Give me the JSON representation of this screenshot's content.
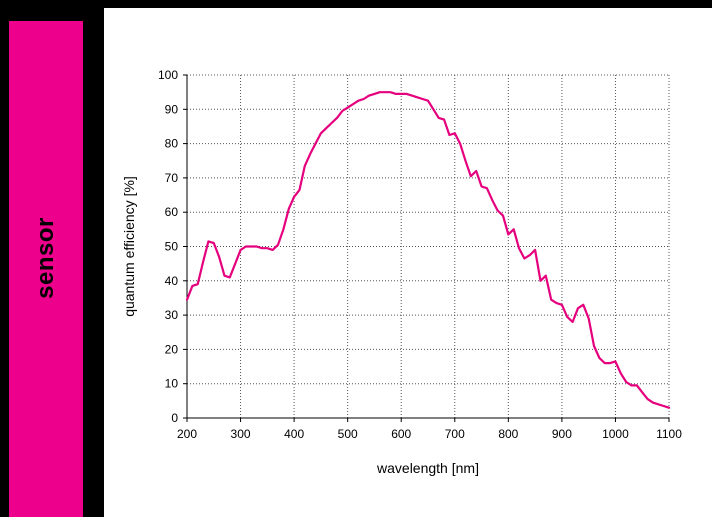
{
  "sidebar": {
    "label": "sensor",
    "accent_color": "#ec008c"
  },
  "chart_data": {
    "type": "line",
    "xlabel": "wavelength [nm]",
    "ylabel": "quantum efficiency [%]",
    "xlim": [
      200,
      1100
    ],
    "ylim": [
      0,
      100
    ],
    "x_ticks": [
      200,
      300,
      400,
      500,
      600,
      700,
      800,
      900,
      1000,
      1100
    ],
    "y_ticks": [
      0,
      10,
      20,
      30,
      40,
      50,
      60,
      70,
      80,
      90,
      100
    ],
    "grid": true,
    "grid_style": "dotted",
    "series": [
      {
        "color": "#e5007e",
        "x": [
          200,
          210,
          220,
          230,
          240,
          250,
          260,
          270,
          280,
          290,
          300,
          310,
          320,
          330,
          340,
          350,
          360,
          370,
          380,
          390,
          400,
          410,
          420,
          430,
          440,
          450,
          460,
          470,
          480,
          490,
          500,
          510,
          520,
          530,
          540,
          550,
          560,
          570,
          580,
          590,
          600,
          610,
          620,
          630,
          640,
          650,
          660,
          670,
          680,
          690,
          700,
          710,
          720,
          730,
          740,
          750,
          760,
          770,
          780,
          790,
          800,
          810,
          820,
          830,
          840,
          850,
          860,
          870,
          880,
          890,
          900,
          910,
          920,
          930,
          940,
          950,
          960,
          970,
          980,
          990,
          1000,
          1010,
          1020,
          1030,
          1040,
          1050,
          1060,
          1070,
          1080,
          1090,
          1100
        ],
        "y": [
          34.5,
          38.5,
          39,
          45.5,
          51.5,
          51,
          47,
          41.5,
          41,
          45,
          49,
          50,
          50,
          50,
          49.5,
          49.5,
          49,
          50.5,
          55,
          61,
          64.5,
          66.5,
          73.5,
          77,
          80,
          83,
          84.5,
          86,
          87.5,
          89.5,
          90.5,
          91.5,
          92.5,
          93,
          94,
          94.5,
          95,
          95,
          95,
          94.5,
          94.5,
          94.5,
          94,
          93.5,
          93,
          92.5,
          90,
          87.5,
          87,
          82.5,
          83,
          80,
          75,
          70.5,
          72,
          67.5,
          67,
          63.5,
          60.5,
          59,
          53.5,
          55,
          49.5,
          46.5,
          47.5,
          49,
          40,
          41.5,
          34.5,
          33.5,
          33,
          29.5,
          28,
          32,
          33,
          29,
          21,
          17.5,
          16,
          16,
          16.5,
          13,
          10.5,
          9.5,
          9.5,
          7.5,
          5.5,
          4.5,
          4,
          3.5,
          3
        ]
      }
    ]
  }
}
